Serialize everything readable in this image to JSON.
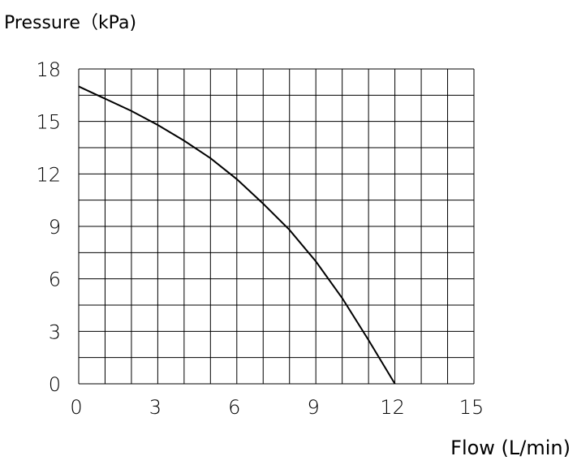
{
  "chart_data": {
    "type": "line",
    "title": "Pressure（kPa)",
    "x_label": "Flow (L/min)",
    "x": [
      0,
      1,
      2,
      3,
      4,
      5,
      6,
      7,
      8,
      9,
      10,
      11,
      12
    ],
    "series": [
      {
        "color": "#000000",
        "values": [
          17,
          16.3,
          15.6,
          14.8,
          13.9,
          12.9,
          11.7,
          10.3,
          8.8,
          7.0,
          4.9,
          2.5,
          0
        ]
      }
    ],
    "xlim": [
      0,
      15
    ],
    "ylim": [
      0,
      18
    ],
    "xticks": [
      0,
      3,
      6,
      9,
      12,
      15
    ],
    "yticks": [
      0,
      3,
      6,
      9,
      12,
      15,
      18
    ],
    "xgrid": [
      0,
      1,
      2,
      3,
      4,
      5,
      6,
      7,
      8,
      9,
      10,
      11,
      12,
      13,
      14,
      15
    ],
    "ygrid": [
      0,
      1.5,
      3,
      4.5,
      6,
      7.5,
      9,
      10.5,
      12,
      13.5,
      15,
      16.5,
      18
    ],
    "grid": true
  }
}
